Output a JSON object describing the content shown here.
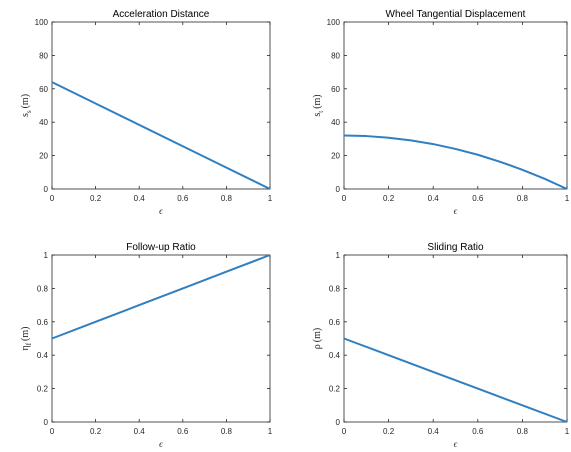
{
  "chart_data": [
    {
      "type": "line",
      "title": "Acceleration Distance",
      "xlabel": "ϵ",
      "ylabel": "s_s (m)",
      "ylabel_main": "s",
      "ylabel_sub": "s",
      "ylabel_unit": "(m)",
      "xlim": [
        0,
        1
      ],
      "ylim": [
        0,
        100
      ],
      "xticks": [
        "0",
        "0.2",
        "0.4",
        "0.6",
        "0.8",
        "1"
      ],
      "yticks": [
        "0",
        "20",
        "40",
        "60",
        "80",
        "100"
      ],
      "grid": false,
      "color": "#2f7fc1",
      "series": [
        {
          "x": [
            0,
            0.2,
            0.4,
            0.6,
            0.8,
            1.0
          ],
          "values": [
            64,
            51.2,
            38.4,
            25.6,
            12.8,
            0
          ]
        }
      ]
    },
    {
      "type": "line",
      "title": "Wheel Tangential Displacement",
      "xlabel": "ϵ",
      "ylabel": "s_t (m)",
      "ylabel_main": "s",
      "ylabel_sub": "t",
      "ylabel_unit": "(m)",
      "xlim": [
        0,
        1
      ],
      "ylim": [
        0,
        100
      ],
      "xticks": [
        "0",
        "0.2",
        "0.4",
        "0.6",
        "0.8",
        "1"
      ],
      "yticks": [
        "0",
        "20",
        "40",
        "60",
        "80",
        "100"
      ],
      "grid": false,
      "color": "#2f7fc1",
      "series": [
        {
          "x": [
            0,
            0.1,
            0.2,
            0.3,
            0.4,
            0.5,
            0.6,
            0.7,
            0.8,
            0.9,
            1.0
          ],
          "values": [
            32,
            31.7,
            30.7,
            29.1,
            26.9,
            24.0,
            20.5,
            16.3,
            11.5,
            6.1,
            0
          ]
        }
      ]
    },
    {
      "type": "line",
      "title": "Follow-up Ratio",
      "xlabel": "ϵ",
      "ylabel": "η_f (m)",
      "ylabel_main": "η",
      "ylabel_sub": "f",
      "ylabel_unit": "(m)",
      "xlim": [
        0,
        1
      ],
      "ylim": [
        0,
        1
      ],
      "xticks": [
        "0",
        "0.2",
        "0.4",
        "0.6",
        "0.8",
        "1"
      ],
      "yticks": [
        "0",
        "0.2",
        "0.4",
        "0.6",
        "0.8",
        "1"
      ],
      "grid": false,
      "color": "#2f7fc1",
      "series": [
        {
          "x": [
            0,
            0.2,
            0.4,
            0.6,
            0.8,
            1.0
          ],
          "values": [
            0.5,
            0.6,
            0.7,
            0.8,
            0.9,
            1.0
          ]
        }
      ]
    },
    {
      "type": "line",
      "title": "Sliding Ratio",
      "xlabel": "ϵ",
      "ylabel": "ρ (m)",
      "ylabel_main": "ρ",
      "ylabel_sub": "",
      "ylabel_unit": "(m)",
      "xlim": [
        0,
        1
      ],
      "ylim": [
        0,
        1
      ],
      "xticks": [
        "0",
        "0.2",
        "0.4",
        "0.6",
        "0.8",
        "1"
      ],
      "yticks": [
        "0",
        "0.2",
        "0.4",
        "0.6",
        "0.8",
        "1"
      ],
      "grid": false,
      "color": "#2f7fc1",
      "series": [
        {
          "x": [
            0,
            0.2,
            0.4,
            0.6,
            0.8,
            1.0
          ],
          "values": [
            0.5,
            0.4,
            0.3,
            0.2,
            0.1,
            0
          ]
        }
      ]
    }
  ]
}
